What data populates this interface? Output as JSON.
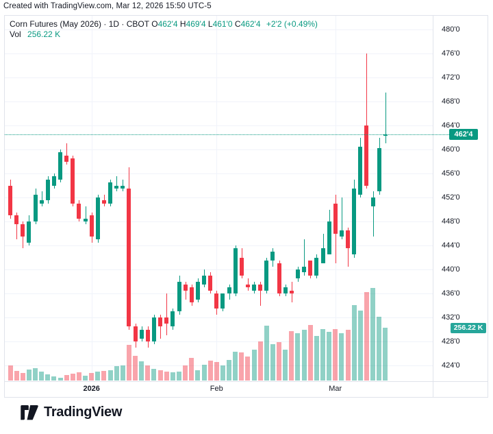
{
  "attribution": "Created with TradingView.com, Mar 12, 2026 15:50 UTC-5",
  "legend": {
    "symbol": "Corn Futures (May 2026)",
    "separator": " · ",
    "interval": "1D",
    "exchange": "CBOT",
    "ohlc": [
      {
        "label": "O",
        "value": "462'4"
      },
      {
        "label": "H",
        "value": "469'4"
      },
      {
        "label": "L",
        "value": "461'0"
      },
      {
        "label": "C",
        "value": "462'4"
      }
    ],
    "change": "+2'2 (+0.49%)",
    "volume_label": "Vol",
    "volume_value": "256.22 K"
  },
  "price_axis": {
    "ticks": [
      480,
      476,
      472,
      468,
      464,
      460,
      456,
      452,
      448,
      444,
      440,
      436,
      432,
      428,
      424
    ]
  },
  "time_axis": {
    "ticks": [
      {
        "label": "2026",
        "candle_index": 13,
        "emphasis": true
      },
      {
        "label": "Feb",
        "candle_index": 33,
        "emphasis": false
      },
      {
        "label": "Mar",
        "candle_index": 52,
        "emphasis": false
      }
    ]
  },
  "last_price_badge": "462'4",
  "last_volume_badge": "256.22 K",
  "footer": {
    "logo_text": "TradingView"
  },
  "colors": {
    "up": "#089981",
    "down": "#f23645",
    "volume_up": "rgba(8,153,129,0.45)",
    "volume_down": "rgba(242,54,69,0.45)",
    "price_badge_bg": "#089981",
    "volume_badge_bg": "#26a69a",
    "grid": "#f0f3fa",
    "axis_text": "#131722",
    "value_text": "#089981",
    "last_price_line": "#089981"
  },
  "chart_data": {
    "type": "candlestick",
    "title": "Corn Futures (May 2026) · 1D · CBOT",
    "price_format": "cents and eighths: 462'4 = 462.5",
    "last_bar": {
      "open": "462'4",
      "high": "469'4",
      "low": "461'0",
      "close": "462'4",
      "change": "+2'2 (+0.49%)",
      "volume": "256.22 K",
      "date": "Mar 12, 2026"
    },
    "ylim": [
      422,
      481
    ],
    "volume_ylim_k": [
      0,
      450
    ],
    "legend_position": "top-left",
    "grid": true,
    "columns": [
      "date",
      "open",
      "high",
      "low",
      "close",
      "volume_k"
    ],
    "rows": [
      [
        "2025-12-12",
        454,
        455,
        448.5,
        449,
        72
      ],
      [
        "2025-12-15",
        449,
        449.5,
        445,
        447.5,
        47
      ],
      [
        "2025-12-16",
        447.5,
        448,
        443.5,
        445.5,
        36
      ],
      [
        "2025-12-17",
        444.5,
        449,
        444,
        448,
        53
      ],
      [
        "2025-12-18",
        448,
        453.5,
        447.5,
        452.5,
        60
      ],
      [
        "2025-12-19",
        451,
        453,
        450.5,
        451.5,
        44
      ],
      [
        "2025-12-22",
        451.5,
        455.5,
        451,
        455,
        30
      ],
      [
        "2025-12-23",
        454,
        456,
        453.5,
        455.5,
        19
      ],
      [
        "2025-12-24",
        455,
        460,
        454.5,
        459.5,
        14
      ],
      [
        "2025-12-26",
        459,
        461,
        457.5,
        458,
        27
      ],
      [
        "2025-12-29",
        458.5,
        459,
        450.5,
        451,
        33
      ],
      [
        "2025-12-30",
        451,
        451.5,
        448,
        448.5,
        40
      ],
      [
        "2025-12-31",
        448,
        450.5,
        447.5,
        448.5,
        22
      ],
      [
        "2026-01-02",
        449,
        449.5,
        444.5,
        445.5,
        35
      ],
      [
        "2026-01-05",
        445,
        452.5,
        444.5,
        452,
        44
      ],
      [
        "2026-01-06",
        451.5,
        452.5,
        450.5,
        451,
        47
      ],
      [
        "2026-01-07",
        451,
        455,
        450.5,
        454.5,
        50
      ],
      [
        "2026-01-08",
        453.5,
        455.5,
        453,
        454,
        71
      ],
      [
        "2026-01-09",
        453.5,
        455,
        453,
        454,
        72
      ],
      [
        "2026-01-12",
        453.5,
        457,
        430,
        430.5,
        172
      ],
      [
        "2026-01-13",
        430.5,
        431,
        427,
        428,
        120
      ],
      [
        "2026-01-14",
        428.5,
        430.5,
        428,
        430,
        93
      ],
      [
        "2026-01-15",
        430,
        430.5,
        427,
        428,
        73
      ],
      [
        "2026-01-16",
        428,
        432.5,
        427.5,
        432,
        55
      ],
      [
        "2026-01-20",
        432,
        432.5,
        428.5,
        430.5,
        49
      ],
      [
        "2026-01-21",
        432,
        436,
        429,
        431,
        44
      ],
      [
        "2026-01-22",
        430.5,
        433.5,
        430,
        433,
        41
      ],
      [
        "2026-01-23",
        433,
        439,
        432.5,
        438,
        44
      ],
      [
        "2026-01-26",
        437.5,
        438,
        435,
        436.5,
        72
      ],
      [
        "2026-01-27",
        437,
        437.5,
        434,
        434.5,
        110
      ],
      [
        "2026-01-28",
        435,
        438.5,
        434.5,
        438,
        50
      ],
      [
        "2026-01-29",
        437.5,
        440,
        437,
        439,
        77
      ],
      [
        "2026-01-30",
        439,
        439.5,
        436,
        436.5,
        95
      ],
      [
        "2026-02-02",
        436,
        436.5,
        432.5,
        433.5,
        90
      ],
      [
        "2026-02-03",
        433.5,
        436,
        433,
        436,
        72
      ],
      [
        "2026-02-04",
        436,
        437.5,
        435,
        437,
        100
      ],
      [
        "2026-02-05",
        436,
        444,
        435.5,
        443.5,
        140
      ],
      [
        "2026-02-06",
        442,
        443.5,
        438.5,
        439,
        135
      ],
      [
        "2026-02-09",
        437.5,
        438.5,
        436.5,
        437,
        115
      ],
      [
        "2026-02-10",
        436.5,
        438,
        436,
        437.5,
        150
      ],
      [
        "2026-02-11",
        437.5,
        438,
        434,
        436.5,
        190
      ],
      [
        "2026-02-12",
        436.5,
        442,
        436,
        441.5,
        265
      ],
      [
        "2026-02-13",
        441.5,
        443.5,
        440.5,
        443,
        175
      ],
      [
        "2026-02-17",
        441,
        441.5,
        435.5,
        436,
        185
      ],
      [
        "2026-02-18",
        436,
        437.5,
        435.5,
        437,
        150
      ],
      [
        "2026-02-19",
        436.5,
        438,
        434.5,
        436,
        240
      ],
      [
        "2026-02-20",
        438.5,
        440.5,
        438,
        440,
        230
      ],
      [
        "2026-02-23",
        439.5,
        445,
        439,
        440.5,
        245
      ],
      [
        "2026-02-24",
        441.5,
        441.5,
        438.5,
        439,
        270
      ],
      [
        "2026-02-25",
        439,
        442.5,
        438.5,
        442,
        215
      ],
      [
        "2026-02-26",
        441,
        446,
        441,
        443.5,
        250
      ],
      [
        "2026-02-27",
        442.5,
        450,
        442.5,
        448,
        235
      ],
      [
        "2026-03-02",
        451,
        452.5,
        441,
        446,
        250
      ],
      [
        "2026-03-03",
        445.5,
        452,
        445,
        446.5,
        230
      ],
      [
        "2026-03-04",
        446.5,
        447,
        440.5,
        443.5,
        245
      ],
      [
        "2026-03-05",
        442.5,
        455,
        442,
        453.5,
        365
      ],
      [
        "2026-03-06",
        452.5,
        462,
        452,
        460.5,
        340
      ],
      [
        "2026-03-09",
        464,
        476,
        453.5,
        454,
        428
      ],
      [
        "2026-03-10",
        450.5,
        453,
        445.5,
        452,
        448
      ],
      [
        "2026-03-11",
        453,
        462,
        452.5,
        460.25,
        310
      ],
      [
        "2026-03-12",
        462.5,
        469.5,
        461,
        462.5,
        256.22
      ]
    ]
  }
}
